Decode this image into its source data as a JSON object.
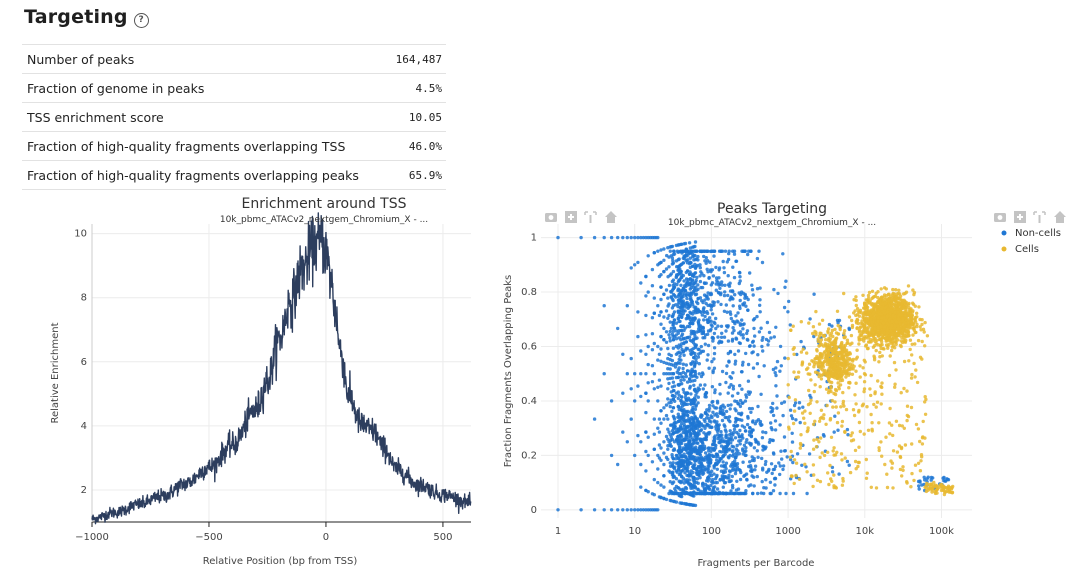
{
  "section": {
    "title": "Targeting",
    "help_icon": "?"
  },
  "metrics": [
    {
      "label": "Number of peaks",
      "value": "164,487"
    },
    {
      "label": "Fraction of genome in peaks",
      "value": "4.5%"
    },
    {
      "label": "TSS enrichment score",
      "value": "10.05"
    },
    {
      "label": "Fraction of high-quality fragments overlapping TSS",
      "value": "46.0%"
    },
    {
      "label": "Fraction of high-quality fragments overlapping peaks",
      "value": "65.9%"
    }
  ],
  "chart_data": [
    {
      "type": "line",
      "title": "Enrichment around TSS",
      "subtitle": "10k_pbmc_ATACv2_nextgem_Chromium_X - ...",
      "xlabel": "Relative Position (bp from TSS)",
      "ylabel": "Relative Enrichment",
      "xlim": [
        -1000,
        620
      ],
      "ylim": [
        1.0,
        10.3
      ],
      "xticks": [
        -1000,
        -500,
        0,
        500
      ],
      "xtick_labels": [
        "−1000",
        "−500",
        "0",
        "500"
      ],
      "yticks": [
        2,
        4,
        6,
        8,
        10
      ],
      "color": "#2d3e5e",
      "x": [
        -1000,
        -900,
        -800,
        -700,
        -600,
        -500,
        -400,
        -300,
        -250,
        -200,
        -150,
        -100,
        -60,
        -40,
        -20,
        0,
        20,
        40,
        60,
        100,
        150,
        200,
        250,
        300,
        400,
        500,
        620
      ],
      "y": [
        1.1,
        1.3,
        1.55,
        1.8,
        2.2,
        2.7,
        3.4,
        4.5,
        5.4,
        6.7,
        7.9,
        8.9,
        9.5,
        9.7,
        9.8,
        9.4,
        8.6,
        7.6,
        6.4,
        4.9,
        4.05,
        3.85,
        3.3,
        2.65,
        2.15,
        1.85,
        1.6
      ],
      "peak_x": 0,
      "peak_y": 10.05
    },
    {
      "type": "scatter",
      "title": "Peaks Targeting",
      "subtitle": "10k_pbmc_ATACv2_nextgem_Chromium_X - ...",
      "xlabel": "Fragments per Barcode",
      "ylabel": "Fraction Fragments Overlapping Peaks",
      "x_scale": "log",
      "xlim": [
        0.6,
        250000
      ],
      "ylim": [
        -0.03,
        1.05
      ],
      "xticks": [
        1,
        10,
        100,
        1000,
        10000,
        100000
      ],
      "xtick_labels": [
        "1",
        "10",
        "100",
        "1000",
        "10k",
        "100k"
      ],
      "yticks": [
        0,
        0.2,
        0.4,
        0.6,
        0.8,
        1
      ],
      "ytick_labels": [
        "0",
        "0.2",
        "0.4",
        "0.6",
        "0.8",
        "1"
      ],
      "legend": "top-right",
      "series": [
        {
          "name": "Non-cells",
          "color": "#1f77d4",
          "description": "Low-fragment barcodes spread across the full 0-1 fraction range with arc-shaped discrete bands between 1 and ~2000 fragments"
        },
        {
          "name": "Cells",
          "color": "#e8b830",
          "description": "Dense cluster at 10k-30k fragments around 0.65-0.75 fraction, secondary cluster near 3k-6k at 0.5-0.6"
        }
      ]
    }
  ],
  "modebar": {
    "icons": [
      "camera-icon",
      "zoom-in-icon",
      "autoscale-icon",
      "home-icon"
    ]
  }
}
